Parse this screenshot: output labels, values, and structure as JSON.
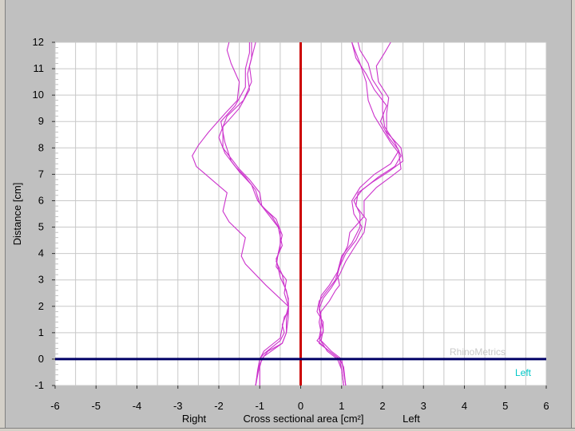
{
  "chart_data": {
    "type": "line",
    "xlim": [
      -6,
      6
    ],
    "ylim": [
      -1,
      12
    ],
    "x_ticks": [
      -6,
      -5,
      -4,
      -3,
      -2,
      -1,
      0,
      1,
      2,
      3,
      4,
      5,
      6
    ],
    "y_ticks": [
      -1,
      0,
      1,
      2,
      3,
      4,
      5,
      6,
      7,
      8,
      9,
      10,
      11,
      12
    ],
    "ylabel": "Distance [cm]",
    "xlabel_left": "Right",
    "xlabel_center": "Cross sectional area [cm²]",
    "xlabel_right": "Left",
    "watermark": "RhinoMetrics",
    "legend_label": "Left",
    "grid": true,
    "colors": {
      "background": "#c0c0c0",
      "plot": "#ffffff",
      "grid": "#c8c8c8",
      "curve": "#cc33cc",
      "vertical_axis": "#cc0000",
      "horizontal_axis": "#000066",
      "watermark": "#c8c8c8",
      "legend": "#00c8c8"
    },
    "series": [
      {
        "values": [
          [
            -1.1,
            -1
          ],
          [
            -1.05,
            -0.4
          ],
          [
            -1.0,
            0.0
          ],
          [
            -0.9,
            0.2
          ],
          [
            -0.5,
            0.7
          ],
          [
            -0.4,
            1.0
          ],
          [
            -0.45,
            1.3
          ],
          [
            -0.35,
            1.7
          ],
          [
            -0.3,
            2.0
          ],
          [
            -0.4,
            2.5
          ],
          [
            -0.35,
            3.0
          ],
          [
            -0.6,
            3.5
          ],
          [
            -0.55,
            4.0
          ],
          [
            -0.45,
            4.7
          ],
          [
            -0.6,
            5.3
          ],
          [
            -0.95,
            5.8
          ],
          [
            -1.0,
            6.3
          ],
          [
            -1.25,
            6.8
          ],
          [
            -1.5,
            7.2
          ],
          [
            -1.7,
            7.6
          ],
          [
            -1.9,
            8.0
          ],
          [
            -1.9,
            8.8
          ],
          [
            -1.5,
            9.5
          ],
          [
            -1.25,
            10.2
          ],
          [
            -1.3,
            10.8
          ],
          [
            -1.2,
            11.4
          ],
          [
            -1.2,
            12
          ]
        ]
      },
      {
        "values": [
          [
            -1.0,
            -1
          ],
          [
            -1.0,
            -0.3
          ],
          [
            -0.95,
            0.0
          ],
          [
            -0.8,
            0.3
          ],
          [
            -0.45,
            0.6
          ],
          [
            -0.35,
            1.0
          ],
          [
            -0.35,
            1.5
          ],
          [
            -0.3,
            1.9
          ],
          [
            -0.3,
            2.3
          ],
          [
            -0.4,
            2.8
          ],
          [
            -0.45,
            3.2
          ],
          [
            -0.6,
            3.7
          ],
          [
            -0.5,
            4.2
          ],
          [
            -0.5,
            4.9
          ],
          [
            -0.7,
            5.4
          ],
          [
            -1.0,
            5.9
          ],
          [
            -1.1,
            6.4
          ],
          [
            -1.35,
            6.9
          ],
          [
            -1.6,
            7.3
          ],
          [
            -1.85,
            7.8
          ],
          [
            -2.0,
            8.4
          ],
          [
            -1.8,
            9.2
          ],
          [
            -1.4,
            9.8
          ],
          [
            -1.2,
            10.5
          ],
          [
            -1.25,
            11.1
          ],
          [
            -1.15,
            11.7
          ],
          [
            -1.1,
            12
          ]
        ]
      },
      {
        "values": [
          [
            -1.1,
            -1
          ],
          [
            -1.05,
            -0.5
          ],
          [
            -1.0,
            0.0
          ],
          [
            -0.9,
            0.3
          ],
          [
            -0.5,
            0.8
          ],
          [
            -0.45,
            1.2
          ],
          [
            -0.4,
            1.6
          ],
          [
            -0.3,
            1.8
          ],
          [
            -0.3,
            2.2
          ],
          [
            -0.35,
            2.6
          ],
          [
            -0.5,
            3.1
          ],
          [
            -0.6,
            3.8
          ],
          [
            -0.45,
            4.3
          ],
          [
            -0.55,
            5.0
          ],
          [
            -0.8,
            5.5
          ],
          [
            -1.05,
            6.0
          ],
          [
            -1.2,
            6.6
          ],
          [
            -1.5,
            7.1
          ],
          [
            -1.7,
            7.5
          ],
          [
            -1.85,
            8.2
          ],
          [
            -1.95,
            9.0
          ],
          [
            -1.6,
            9.6
          ],
          [
            -1.35,
            10.3
          ],
          [
            -1.35,
            11.0
          ],
          [
            -1.25,
            11.6
          ],
          [
            -1.25,
            12
          ]
        ]
      },
      {
        "values": [
          [
            -1.1,
            -1
          ],
          [
            -1.0,
            -0.2
          ],
          [
            -0.9,
            0.1
          ],
          [
            -0.45,
            0.6
          ],
          [
            -0.35,
            1.0
          ],
          [
            -0.3,
            1.6
          ],
          [
            -0.3,
            2.0
          ],
          [
            -0.85,
            2.8
          ],
          [
            -1.35,
            3.6
          ],
          [
            -1.45,
            3.9
          ],
          [
            -1.35,
            4.6
          ],
          [
            -1.75,
            5.2
          ],
          [
            -1.9,
            5.6
          ],
          [
            -1.8,
            6.3
          ],
          [
            -2.1,
            6.7
          ],
          [
            -2.55,
            7.3
          ],
          [
            -2.65,
            7.7
          ],
          [
            -2.5,
            8.1
          ],
          [
            -2.25,
            8.6
          ],
          [
            -1.85,
            9.3
          ],
          [
            -1.55,
            9.8
          ],
          [
            -1.5,
            10.5
          ],
          [
            -1.7,
            11.2
          ],
          [
            -1.8,
            11.7
          ],
          [
            -1.75,
            12
          ]
        ]
      },
      {
        "values": [
          [
            1.1,
            -1
          ],
          [
            1.05,
            -0.3
          ],
          [
            0.95,
            0.0
          ],
          [
            0.7,
            0.3
          ],
          [
            0.4,
            0.7
          ],
          [
            0.55,
            1.0
          ],
          [
            0.55,
            1.4
          ],
          [
            0.4,
            1.8
          ],
          [
            0.45,
            2.2
          ],
          [
            0.65,
            2.6
          ],
          [
            0.85,
            3.0
          ],
          [
            0.95,
            3.5
          ],
          [
            1.1,
            4.0
          ],
          [
            1.35,
            4.5
          ],
          [
            1.5,
            5.0
          ],
          [
            1.3,
            5.5
          ],
          [
            1.25,
            6.0
          ],
          [
            1.45,
            6.5
          ],
          [
            1.8,
            7.0
          ],
          [
            2.2,
            7.4
          ],
          [
            2.4,
            7.9
          ],
          [
            2.15,
            8.4
          ],
          [
            1.95,
            9.0
          ],
          [
            2.1,
            9.6
          ],
          [
            1.8,
            10.2
          ],
          [
            1.6,
            10.8
          ],
          [
            1.35,
            11.4
          ],
          [
            1.25,
            12
          ]
        ]
      },
      {
        "values": [
          [
            1.05,
            -1
          ],
          [
            1.0,
            -0.4
          ],
          [
            0.9,
            0.0
          ],
          [
            0.65,
            0.3
          ],
          [
            0.45,
            0.8
          ],
          [
            0.5,
            1.2
          ],
          [
            0.5,
            1.6
          ],
          [
            0.45,
            2.0
          ],
          [
            0.5,
            2.4
          ],
          [
            0.7,
            2.8
          ],
          [
            0.9,
            3.3
          ],
          [
            1.0,
            3.9
          ],
          [
            1.25,
            4.4
          ],
          [
            1.45,
            5.0
          ],
          [
            1.45,
            5.5
          ],
          [
            1.3,
            6.0
          ],
          [
            1.5,
            6.4
          ],
          [
            1.9,
            6.9
          ],
          [
            2.3,
            7.3
          ],
          [
            2.45,
            7.7
          ],
          [
            2.3,
            8.2
          ],
          [
            2.05,
            8.8
          ],
          [
            2.0,
            9.4
          ],
          [
            2.0,
            10.0
          ],
          [
            1.75,
            10.6
          ],
          [
            1.65,
            11.2
          ],
          [
            1.45,
            11.7
          ],
          [
            1.4,
            12
          ]
        ]
      },
      {
        "values": [
          [
            1.1,
            -1
          ],
          [
            1.05,
            -0.5
          ],
          [
            1.0,
            0.0
          ],
          [
            0.75,
            0.3
          ],
          [
            0.5,
            0.7
          ],
          [
            0.55,
            1.1
          ],
          [
            0.5,
            1.5
          ],
          [
            0.45,
            1.9
          ],
          [
            0.55,
            2.3
          ],
          [
            0.75,
            2.7
          ],
          [
            0.95,
            3.2
          ],
          [
            1.1,
            3.7
          ],
          [
            1.3,
            4.2
          ],
          [
            1.55,
            4.8
          ],
          [
            1.6,
            5.3
          ],
          [
            1.35,
            5.8
          ],
          [
            1.4,
            6.3
          ],
          [
            1.75,
            6.7
          ],
          [
            2.15,
            7.1
          ],
          [
            2.5,
            7.5
          ],
          [
            2.45,
            8.0
          ],
          [
            2.1,
            8.6
          ],
          [
            2.1,
            9.3
          ],
          [
            2.15,
            9.9
          ],
          [
            1.9,
            10.5
          ],
          [
            1.85,
            11.1
          ],
          [
            2.05,
            11.6
          ],
          [
            2.2,
            12
          ]
        ]
      },
      {
        "values": [
          [
            1.05,
            -1
          ],
          [
            1.0,
            -0.4
          ],
          [
            0.95,
            0.0
          ],
          [
            0.7,
            0.3
          ],
          [
            0.45,
            0.6
          ],
          [
            0.5,
            1.0
          ],
          [
            0.45,
            1.4
          ],
          [
            0.5,
            1.8
          ],
          [
            0.7,
            2.2
          ],
          [
            0.85,
            2.6
          ],
          [
            0.95,
            2.8
          ],
          [
            0.9,
            3.2
          ],
          [
            1.0,
            3.8
          ],
          [
            1.15,
            4.3
          ],
          [
            1.2,
            4.8
          ],
          [
            1.55,
            5.4
          ],
          [
            1.55,
            6.0
          ],
          [
            1.85,
            6.5
          ],
          [
            2.2,
            6.9
          ],
          [
            2.45,
            7.2
          ],
          [
            2.4,
            7.8
          ],
          [
            2.2,
            8.2
          ],
          [
            2.0,
            8.7
          ],
          [
            1.8,
            9.2
          ],
          [
            1.65,
            9.8
          ],
          [
            1.6,
            10.5
          ],
          [
            1.45,
            11.2
          ],
          [
            1.3,
            11.8
          ],
          [
            1.25,
            12
          ]
        ]
      }
    ]
  }
}
